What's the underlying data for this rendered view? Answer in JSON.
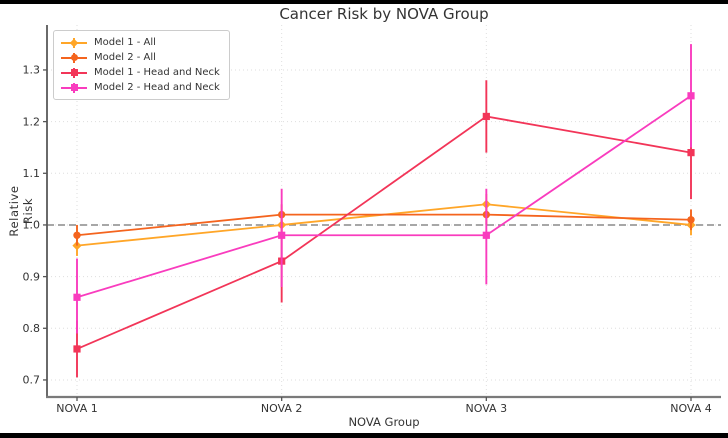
{
  "window": {
    "frame_color": "#000000",
    "background": "#ffffff"
  },
  "chart_data": {
    "type": "line",
    "title": "Cancer Risk by NOVA Group",
    "xlabel": "NOVA Group",
    "ylabel": "Relative Risk",
    "categories": [
      "NOVA 1",
      "NOVA 2",
      "NOVA 3",
      "NOVA 4"
    ],
    "yticks": [
      0.7,
      0.8,
      0.9,
      1.0,
      1.1,
      1.2,
      1.3
    ],
    "ylim": [
      0.667,
      1.387
    ],
    "grid": true,
    "grid_style": "dotted",
    "legend_position": "upper left",
    "reference_line": {
      "y": 1.0,
      "style": "dashed",
      "color": "#8a8a8a"
    },
    "series": [
      {
        "name": "Model 1 - All",
        "color": "#FFA628",
        "marker": "diamond",
        "values": [
          0.96,
          1.0,
          1.04,
          1.0
        ],
        "ci_low": [
          0.94,
          0.98,
          1.02,
          0.98
        ],
        "ci_high": [
          0.99,
          1.02,
          1.06,
          1.02
        ]
      },
      {
        "name": "Model 2 - All",
        "color": "#F4641E",
        "marker": "circle",
        "values": [
          0.98,
          1.02,
          1.02,
          1.01
        ],
        "ci_low": [
          0.96,
          1.0,
          1.0,
          0.99
        ],
        "ci_high": [
          1.0,
          1.04,
          1.04,
          1.03
        ]
      },
      {
        "name": "Model 1 - Head and Neck",
        "color": "#F23558",
        "marker": "square",
        "values": [
          0.76,
          0.93,
          1.21,
          1.14
        ],
        "ci_low": [
          0.705,
          0.85,
          1.14,
          1.05
        ],
        "ci_high": [
          0.815,
          1.01,
          1.28,
          1.24
        ]
      },
      {
        "name": "Model 2 - Head and Neck",
        "color": "#F93CBE",
        "marker": "square",
        "values": [
          0.86,
          0.98,
          0.98,
          1.25
        ],
        "ci_low": [
          0.79,
          0.88,
          0.885,
          1.15
        ],
        "ci_high": [
          0.935,
          1.07,
          1.07,
          1.35
        ]
      }
    ]
  },
  "style": {
    "text_color": "#333333",
    "grid_color": "#dedede",
    "left_spine_color": "#5a5a5a",
    "bottom_spine_color": "#7a7a7a",
    "tick_color": "#555555",
    "legend_border_color": "#cccccc"
  }
}
